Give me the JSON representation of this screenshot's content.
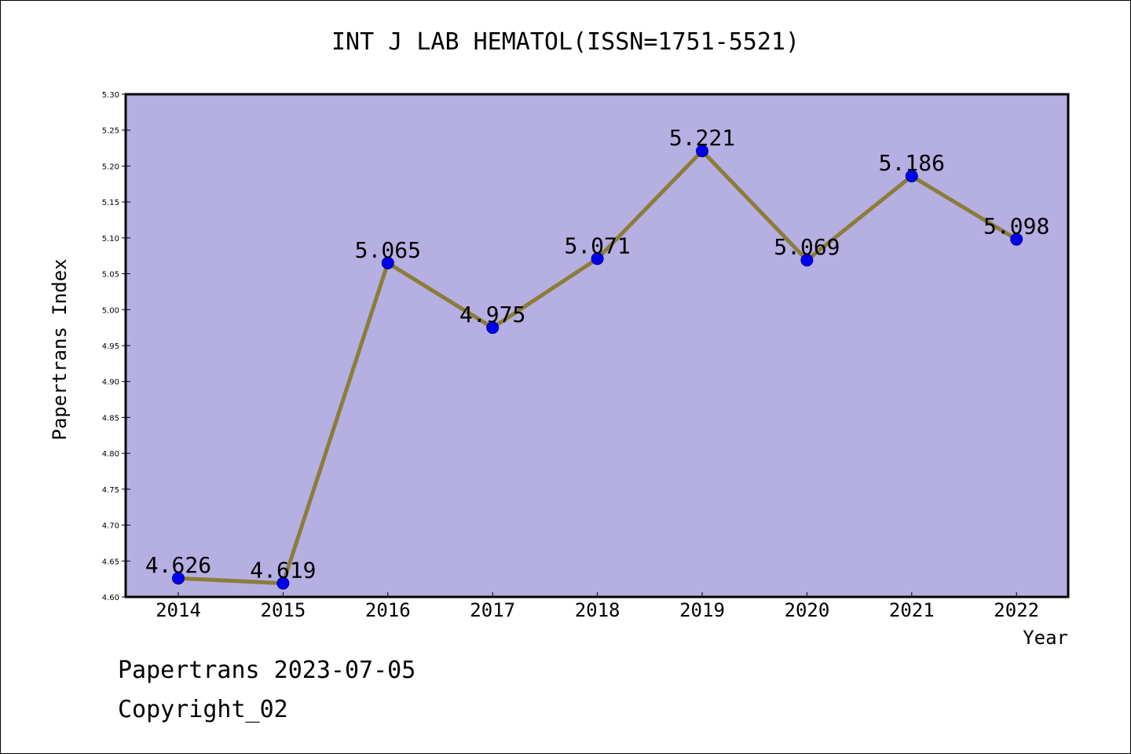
{
  "chart_data": {
    "type": "line",
    "title": "INT J LAB HEMATOL(ISSN=1751-5521)",
    "xlabel": "Year",
    "ylabel": "Papertrans Index",
    "categories": [
      "2014",
      "2015",
      "2016",
      "2017",
      "2018",
      "2019",
      "2020",
      "2021",
      "2022"
    ],
    "series": [
      {
        "values": [
          4.626,
          4.619,
          5.065,
          4.975,
          5.071,
          5.221,
          5.069,
          5.186,
          5.098
        ],
        "labels": [
          "4.626",
          "4.619",
          "5.065",
          "4.975",
          "5.071",
          "5.221",
          "5.069",
          "5.186",
          "5.098"
        ]
      }
    ],
    "ylim": [
      4.6,
      5.3
    ],
    "yticks": [
      "4.60",
      "4.65",
      "4.70",
      "4.75",
      "4.80",
      "4.85",
      "4.90",
      "4.95",
      "5.00",
      "5.05",
      "5.10",
      "5.15",
      "5.20",
      "5.25",
      "5.30"
    ],
    "grid": false,
    "colors": {
      "plot_background": "#b5afe2",
      "line": "#8b7d3a",
      "marker": "#0000ee",
      "marker_edge": "#00008b"
    }
  },
  "footer": {
    "line1": "Papertrans 2023-07-05",
    "line2": "Copyright_02"
  }
}
